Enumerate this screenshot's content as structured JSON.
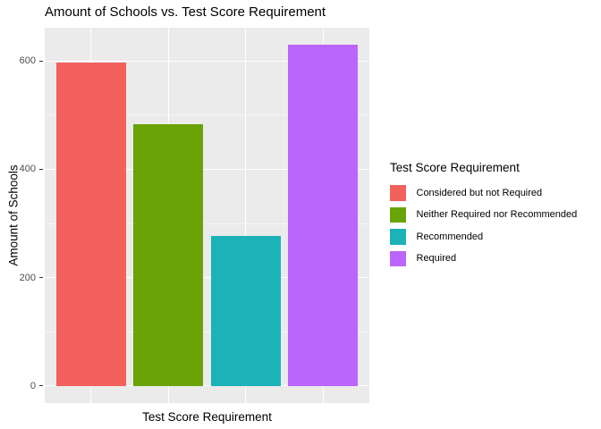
{
  "chart_data": {
    "type": "bar",
    "title": "Amount of Schools vs. Test Score Requirement",
    "xlabel": "Test Score Requirement",
    "ylabel": "Amount of Schools",
    "legend_title": "Test Score Requirement",
    "legend_position": "right",
    "categories": [
      "Considered but not Required",
      "Neither Required nor Recommended",
      "Recommended",
      "Required"
    ],
    "values": [
      598,
      484,
      277,
      630
    ],
    "colors": [
      "#F2615C",
      "#6AA306",
      "#1BB2B8",
      "#BA65FC"
    ],
    "ylim": [
      0,
      630
    ],
    "yticks": [
      0,
      200,
      400,
      600
    ],
    "ytick_labels": [
      "0",
      "200",
      "400",
      "600"
    ],
    "yminor": [
      100,
      300,
      500
    ],
    "grid": true,
    "bar_width_fraction": 0.9,
    "panel_background": "#EBEBEB",
    "gridline_color": "#FFFFFF",
    "tick_label_color": "#4D4D4D",
    "tick_mark_color": "#333333"
  }
}
